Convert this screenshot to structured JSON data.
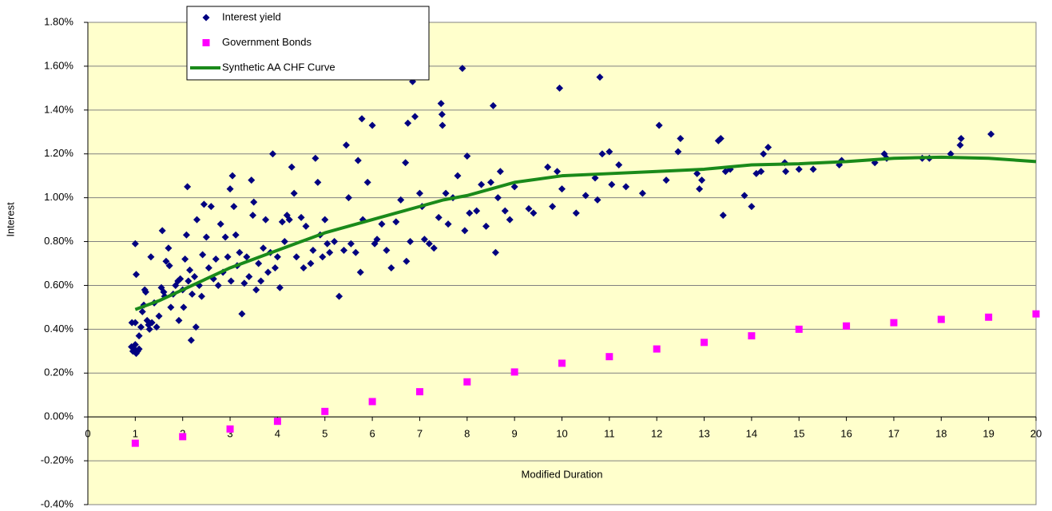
{
  "chart_data": {
    "type": "scatter",
    "x_label": "Modified Duration",
    "y_label": "Interest",
    "xlim": [
      0,
      20
    ],
    "ylim": [
      -0.4,
      1.8
    ],
    "xticks": [
      0,
      1,
      2,
      3,
      4,
      5,
      6,
      7,
      8,
      9,
      10,
      11,
      12,
      13,
      14,
      15,
      16,
      17,
      18,
      19,
      20
    ],
    "yticks": [
      {
        "value": -0.4,
        "label": "-0.40%"
      },
      {
        "value": -0.2,
        "label": "-0.20%"
      },
      {
        "value": 0,
        "label": "0.00%"
      },
      {
        "value": 0.2,
        "label": "0.20%"
      },
      {
        "value": 0.4,
        "label": "0.40%"
      },
      {
        "value": 0.6,
        "label": "0.60%"
      },
      {
        "value": 0.8,
        "label": "0.80%"
      },
      {
        "value": 1.0,
        "label": "1.00%"
      },
      {
        "value": 1.2,
        "label": "1.20%"
      },
      {
        "value": 1.4,
        "label": "1.40%"
      },
      {
        "value": 1.6,
        "label": "1.60%"
      },
      {
        "value": 1.8,
        "label": "1.80%"
      }
    ],
    "grid": true,
    "legend": "top-left",
    "series": [
      {
        "name": "Interest yield",
        "color": "#000080",
        "style": "diamond",
        "x": [
          0.92,
          0.95,
          0.98,
          1.0,
          1.02,
          1.05,
          1.08,
          0.93,
          1.0,
          1.0,
          1.02,
          1.08,
          1.12,
          1.15,
          1.18,
          1.2,
          1.22,
          1.25,
          1.28,
          1.3,
          1.33,
          1.35,
          1.4,
          1.45,
          1.5,
          1.55,
          1.57,
          1.6,
          1.62,
          1.65,
          1.7,
          1.72,
          1.75,
          1.8,
          1.85,
          1.9,
          1.92,
          1.95,
          2.0,
          2.02,
          2.05,
          2.08,
          2.1,
          2.12,
          2.15,
          2.18,
          2.2,
          2.25,
          2.28,
          2.3,
          2.35,
          2.4,
          2.42,
          2.45,
          2.5,
          2.55,
          2.6,
          2.65,
          2.7,
          2.75,
          2.8,
          2.85,
          2.9,
          2.95,
          3.0,
          3.02,
          3.05,
          3.08,
          3.12,
          3.15,
          3.2,
          3.25,
          3.3,
          3.35,
          3.4,
          3.45,
          3.48,
          3.5,
          3.55,
          3.6,
          3.65,
          3.7,
          3.75,
          3.8,
          3.85,
          3.9,
          3.95,
          4.0,
          4.05,
          4.1,
          4.15,
          4.2,
          4.25,
          4.3,
          4.35,
          4.4,
          4.5,
          4.55,
          4.6,
          4.7,
          4.75,
          4.8,
          4.85,
          4.9,
          4.95,
          5.0,
          5.05,
          5.1,
          5.2,
          5.3,
          5.4,
          5.45,
          5.5,
          5.55,
          5.65,
          5.7,
          5.75,
          5.78,
          5.8,
          5.9,
          6.0,
          6.05,
          6.1,
          6.2,
          6.3,
          6.4,
          6.5,
          6.6,
          6.7,
          6.72,
          6.75,
          6.8,
          6.85,
          6.9,
          7.0,
          7.05,
          7.1,
          7.2,
          7.3,
          7.4,
          7.45,
          7.47,
          7.48,
          7.55,
          7.6,
          7.7,
          7.8,
          7.9,
          7.95,
          8.0,
          8.05,
          8.2,
          8.3,
          8.4,
          8.5,
          8.55,
          8.6,
          8.65,
          8.7,
          8.8,
          8.9,
          9.0,
          9.3,
          9.4,
          9.7,
          9.8,
          9.9,
          9.95,
          10.0,
          10.3,
          10.5,
          10.7,
          10.75,
          10.8,
          10.85,
          11.0,
          11.05,
          11.2,
          11.35,
          11.7,
          12.05,
          12.2,
          12.45,
          12.5,
          12.85,
          12.9,
          12.95,
          13.3,
          13.35,
          13.4,
          13.45,
          13.55,
          13.85,
          14.0,
          14.1,
          14.2,
          14.25,
          14.35,
          14.7,
          14.72,
          15.0,
          15.3,
          15.85,
          15.9,
          16.6,
          16.8,
          16.85,
          17.6,
          17.75,
          18.2,
          18.4,
          18.42,
          19.05
        ],
        "values": [
          0.32,
          0.3,
          0.31,
          0.33,
          0.29,
          0.3,
          0.31,
          0.43,
          0.43,
          0.79,
          0.65,
          0.37,
          0.41,
          0.48,
          0.51,
          0.58,
          0.57,
          0.44,
          0.42,
          0.4,
          0.73,
          0.43,
          0.52,
          0.41,
          0.46,
          0.59,
          0.85,
          0.57,
          0.55,
          0.71,
          0.77,
          0.69,
          0.5,
          0.56,
          0.6,
          0.62,
          0.44,
          0.63,
          0.58,
          0.5,
          0.72,
          0.83,
          1.05,
          0.62,
          0.67,
          0.35,
          0.56,
          0.64,
          0.41,
          0.9,
          0.6,
          0.55,
          0.74,
          0.97,
          0.82,
          0.68,
          0.96,
          0.63,
          0.72,
          0.6,
          0.88,
          0.66,
          0.82,
          0.73,
          1.04,
          0.62,
          1.1,
          0.96,
          0.83,
          0.69,
          0.75,
          0.47,
          0.61,
          0.73,
          0.64,
          1.08,
          0.92,
          0.98,
          0.58,
          0.7,
          0.62,
          0.77,
          0.9,
          0.66,
          0.75,
          1.2,
          0.68,
          0.73,
          0.59,
          0.89,
          0.8,
          0.92,
          0.9,
          1.14,
          1.02,
          0.73,
          0.91,
          0.68,
          0.87,
          0.7,
          0.76,
          1.18,
          1.07,
          0.83,
          0.73,
          0.9,
          0.79,
          0.75,
          0.8,
          0.55,
          0.76,
          1.24,
          1.0,
          0.79,
          0.75,
          1.17,
          0.66,
          1.36,
          0.9,
          1.07,
          1.33,
          0.79,
          0.81,
          0.88,
          0.76,
          0.68,
          0.89,
          0.99,
          1.16,
          0.71,
          1.34,
          0.8,
          1.53,
          1.37,
          1.02,
          0.96,
          0.81,
          0.79,
          0.77,
          0.91,
          1.43,
          1.38,
          1.33,
          1.02,
          0.88,
          1.0,
          1.1,
          1.59,
          0.85,
          1.19,
          0.93,
          0.94,
          1.06,
          0.87,
          1.07,
          1.42,
          0.75,
          1.0,
          1.12,
          0.94,
          0.9,
          1.05,
          0.95,
          0.93,
          1.14,
          0.96,
          1.12,
          1.5,
          1.04,
          0.93,
          1.01,
          1.09,
          0.99,
          1.55,
          1.2,
          1.21,
          1.06,
          1.15,
          1.05,
          1.02,
          1.33,
          1.08,
          1.21,
          1.27,
          1.11,
          1.04,
          1.08,
          1.26,
          1.27,
          0.92,
          1.12,
          1.13,
          1.01,
          0.96,
          1.11,
          1.12,
          1.2,
          1.23,
          1.16,
          1.12,
          1.13,
          1.13,
          1.15,
          1.17,
          1.16,
          1.2,
          1.18,
          1.18,
          1.18,
          1.2,
          1.24,
          1.27,
          1.29
        ]
      },
      {
        "name": "Government Bonds",
        "color": "#ff00ff",
        "style": "square",
        "x": [
          1,
          2,
          3,
          4,
          5,
          6,
          7,
          8,
          9,
          10,
          11,
          12,
          13,
          14,
          15,
          16,
          17,
          18,
          19,
          20
        ],
        "values": [
          -0.12,
          -0.09,
          -0.055,
          -0.02,
          0.025,
          0.07,
          0.115,
          0.16,
          0.205,
          0.245,
          0.275,
          0.31,
          0.34,
          0.37,
          0.4,
          0.415,
          0.43,
          0.445,
          0.455,
          0.47
        ]
      },
      {
        "name": "Synthetic AA CHF Curve",
        "color": "#1a8a1a",
        "style": "line",
        "x": [
          1,
          1.5,
          2,
          2.5,
          3,
          3.5,
          4,
          4.5,
          5,
          5.5,
          6,
          6.5,
          7,
          7.5,
          8,
          8.5,
          9,
          10,
          11,
          12,
          13,
          14,
          15,
          16,
          17,
          18,
          19,
          20
        ],
        "values": [
          0.49,
          0.53,
          0.58,
          0.63,
          0.68,
          0.72,
          0.76,
          0.8,
          0.84,
          0.87,
          0.9,
          0.93,
          0.96,
          0.99,
          1.01,
          1.04,
          1.07,
          1.1,
          1.11,
          1.12,
          1.13,
          1.15,
          1.155,
          1.165,
          1.18,
          1.185,
          1.18,
          1.165
        ]
      }
    ]
  }
}
